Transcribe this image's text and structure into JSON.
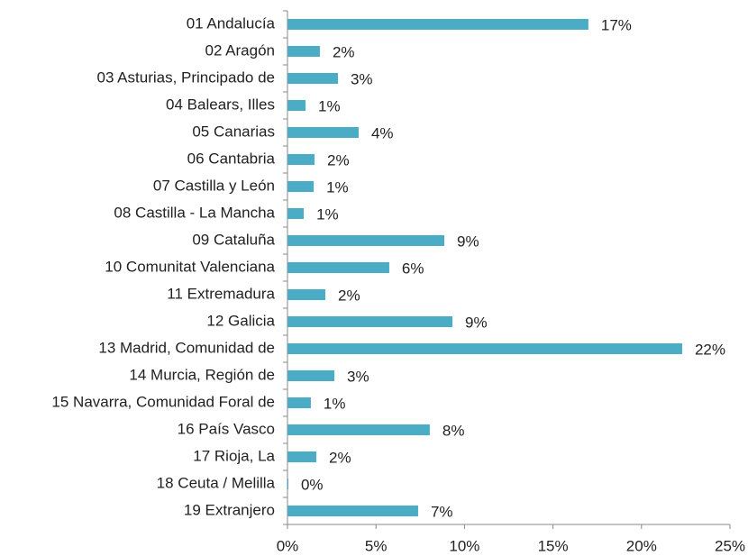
{
  "chart_data": {
    "type": "barh",
    "categories": [
      "01 Andalucía",
      "02 Aragón",
      "03 Asturias, Principado de",
      "04 Balears, Illes",
      "05 Canarias",
      "06 Cantabria",
      "07 Castilla y León",
      "08 Castilla - La Mancha",
      "09 Cataluña",
      "10 Comunitat Valenciana",
      "11 Extremadura",
      "12 Galicia",
      "13 Madrid, Comunidad de",
      "14 Murcia, Región de",
      "15 Navarra, Comunidad Foral de",
      "16 País Vasco",
      "17 Rioja, La",
      "18 Ceuta / Melilla",
      "19 Extranjero"
    ],
    "values": [
      17.0,
      1.83,
      2.85,
      1.02,
      4.02,
      1.53,
      1.48,
      0.92,
      8.86,
      5.75,
      2.14,
      9.32,
      22.3,
      2.65,
      1.32,
      8.04,
      1.63,
      0.05,
      7.38
    ],
    "value_labels": [
      "17%",
      "2%",
      "3%",
      "1%",
      "4%",
      "2%",
      "1%",
      "1%",
      "9%",
      "6%",
      "2%",
      "9%",
      "22%",
      "3%",
      "1%",
      "8%",
      "2%",
      "0%",
      "7%"
    ],
    "color": "#4aacc5",
    "xlim": [
      0,
      25
    ],
    "xticks": [
      {
        "value": 0,
        "label": "0%"
      },
      {
        "value": 5,
        "label": "5%"
      },
      {
        "value": 10,
        "label": "10%"
      },
      {
        "value": 15,
        "label": "15%"
      },
      {
        "value": 20,
        "label": "20%"
      },
      {
        "value": 25,
        "label": "25%"
      }
    ],
    "grid": false
  }
}
